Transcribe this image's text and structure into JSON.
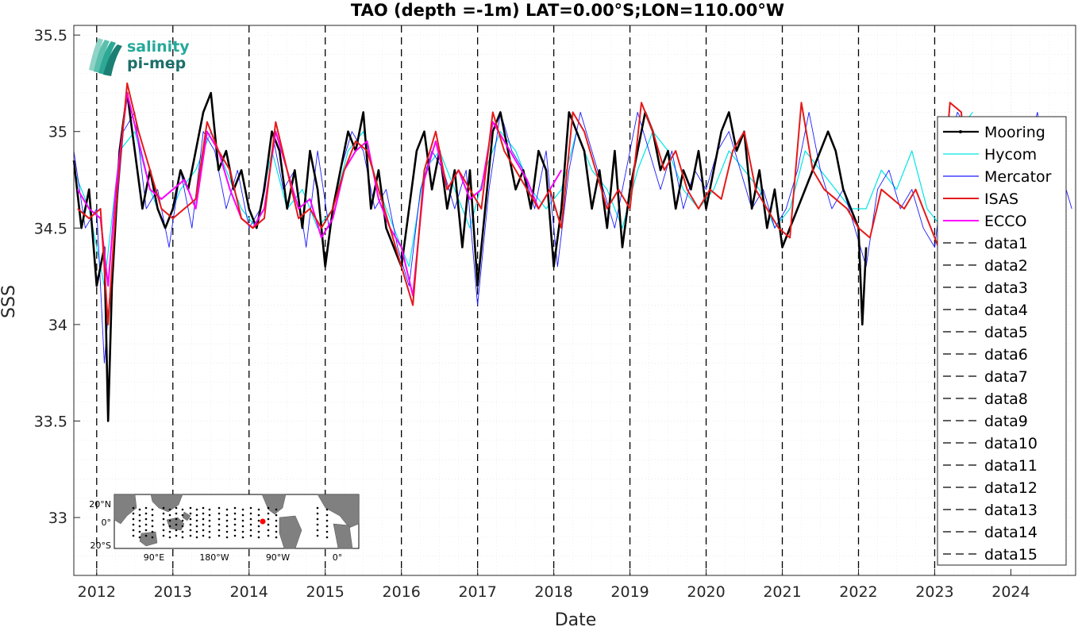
{
  "logo": {
    "line1": "salinity",
    "line2": "pi-mep"
  },
  "inset_map": {
    "lat_labels": [
      "20°N",
      "0°",
      "20°S"
    ],
    "lon_labels": [
      "90°E",
      "180°W",
      "90°W",
      "0°"
    ],
    "marker_color": "#ff0000"
  },
  "chart_data": {
    "type": "line",
    "title": "TAO (depth =-1m) LAT=0.00°S;LON=110.00°W",
    "xlabel": "Date",
    "ylabel": "SSS",
    "xlim": [
      2011.7,
      2024.85
    ],
    "ylim": [
      32.7,
      35.55
    ],
    "x_ticks": [
      2012,
      2013,
      2014,
      2015,
      2016,
      2017,
      2018,
      2019,
      2020,
      2021,
      2022,
      2023,
      2024
    ],
    "y_ticks": [
      33,
      33.5,
      34,
      34.5,
      35,
      35.5
    ],
    "y_tick_labels": [
      "33",
      "33.5",
      "34",
      "34.5",
      "35",
      "35.5"
    ],
    "grid": true,
    "legend_position": "right",
    "vlines_x": [
      2012,
      2013,
      2014,
      2015,
      2016,
      2017,
      2018,
      2019,
      2020,
      2021,
      2022,
      2023
    ],
    "series": [
      {
        "name": "Mooring",
        "color": "#000000",
        "x": [
          2011.7,
          2011.8,
          2011.9,
          2012.0,
          2012.1,
          2012.15,
          2012.2,
          2012.3,
          2012.4,
          2012.5,
          2012.6,
          2012.7,
          2012.8,
          2012.9,
          2013.0,
          2013.1,
          2013.2,
          2013.3,
          2013.4,
          2013.5,
          2013.6,
          2013.7,
          2013.8,
          2013.9,
          2014.0,
          2014.1,
          2014.2,
          2014.3,
          2014.4,
          2014.5,
          2014.6,
          2014.7,
          2014.8,
          2014.9,
          2015.0,
          2015.1,
          2015.2,
          2015.3,
          2015.4,
          2015.5,
          2015.6,
          2015.7,
          2015.8,
          2015.9,
          2016.0,
          2016.1,
          2016.2,
          2016.3,
          2016.4,
          2016.5,
          2016.6,
          2016.7,
          2016.8,
          2016.9,
          2017.0,
          2017.1,
          2017.2,
          2017.3,
          2017.4,
          2017.5,
          2017.6,
          2017.7,
          2017.8,
          2017.9,
          2018.0,
          2018.1,
          2018.2,
          2018.3,
          2018.4,
          2018.5,
          2018.6,
          2018.7,
          2018.8,
          2018.9,
          2019.0,
          2019.1,
          2019.2,
          2019.3,
          2019.4,
          2019.5,
          2019.6,
          2019.7,
          2019.8,
          2019.9,
          2020.0,
          2020.1,
          2020.2,
          2020.3,
          2020.4,
          2020.5,
          2020.6,
          2020.7,
          2020.8,
          2020.9,
          2021.0,
          2021.6,
          2021.7,
          2021.8,
          2021.9,
          2022.0,
          2022.05,
          2022.1
        ],
        "y": [
          34.85,
          34.5,
          34.7,
          34.2,
          34.4,
          33.5,
          34.2,
          34.9,
          35.2,
          34.9,
          34.6,
          34.8,
          34.6,
          34.5,
          34.6,
          34.8,
          34.7,
          34.9,
          35.1,
          35.2,
          34.8,
          34.9,
          34.7,
          34.8,
          34.6,
          34.5,
          34.7,
          35.0,
          34.9,
          34.6,
          34.8,
          34.5,
          34.9,
          34.7,
          34.3,
          34.6,
          34.8,
          35.0,
          34.9,
          35.1,
          34.6,
          34.8,
          34.5,
          34.4,
          34.3,
          34.6,
          34.9,
          35.0,
          34.7,
          34.9,
          34.6,
          34.8,
          34.4,
          34.8,
          34.2,
          34.6,
          35.0,
          35.1,
          34.9,
          34.7,
          34.8,
          34.6,
          34.9,
          34.8,
          34.3,
          34.6,
          35.1,
          35.0,
          34.9,
          34.6,
          34.8,
          34.5,
          34.9,
          34.4,
          34.7,
          34.9,
          35.1,
          35.0,
          34.8,
          34.9,
          34.6,
          34.8,
          34.7,
          34.9,
          34.6,
          34.8,
          35.0,
          35.1,
          34.9,
          35.0,
          34.6,
          34.8,
          34.5,
          34.7,
          34.4,
          35.0,
          34.9,
          34.7,
          34.6,
          34.5,
          34.0,
          34.4
        ]
      },
      {
        "name": "Hycom",
        "color": "#00e5e5",
        "x": [
          2011.7,
          2011.9,
          2012.1,
          2012.3,
          2012.5,
          2012.7,
          2012.9,
          2013.1,
          2013.3,
          2013.5,
          2013.7,
          2013.9,
          2014.1,
          2014.3,
          2014.5,
          2014.7,
          2014.9,
          2015.1,
          2015.3,
          2015.5,
          2015.7,
          2015.9,
          2016.1,
          2016.3,
          2016.5,
          2016.7,
          2016.9,
          2017.1,
          2017.3,
          2017.5,
          2017.7,
          2017.9,
          2018.1,
          2018.3,
          2018.5,
          2018.7,
          2018.9,
          2019.1,
          2019.3,
          2019.5,
          2019.7,
          2019.9,
          2020.1,
          2020.3,
          2020.5,
          2020.7,
          2020.9,
          2021.1,
          2021.3,
          2021.5,
          2021.7,
          2021.9,
          2022.1,
          2022.3,
          2022.5,
          2022.7,
          2022.9,
          2023.1,
          2023.3,
          2023.5
        ],
        "y": [
          34.8,
          34.6,
          34.2,
          34.9,
          35.0,
          34.7,
          34.5,
          34.7,
          34.8,
          35.0,
          34.8,
          34.6,
          34.5,
          34.9,
          34.6,
          34.7,
          34.5,
          34.6,
          34.9,
          35.0,
          34.7,
          34.5,
          34.3,
          34.8,
          34.9,
          34.7,
          34.5,
          34.8,
          35.0,
          34.9,
          34.7,
          34.6,
          34.7,
          35.0,
          34.8,
          34.7,
          34.5,
          34.8,
          35.0,
          34.9,
          34.7,
          34.6,
          34.7,
          34.9,
          34.8,
          34.7,
          34.5,
          34.6,
          34.9,
          34.8,
          34.7,
          34.6,
          34.6,
          34.8,
          34.7,
          34.9,
          34.6,
          34.5,
          35.0,
          35.1
        ]
      },
      {
        "name": "Mercator",
        "color": "#1a1aff",
        "x": [
          2011.7,
          2011.85,
          2012.0,
          2012.1,
          2012.2,
          2012.35,
          2012.5,
          2012.65,
          2012.8,
          2012.95,
          2013.1,
          2013.25,
          2013.4,
          2013.55,
          2013.7,
          2013.85,
          2014.0,
          2014.15,
          2014.3,
          2014.45,
          2014.6,
          2014.75,
          2014.9,
          2015.05,
          2015.2,
          2015.35,
          2015.5,
          2015.65,
          2015.8,
          2015.95,
          2016.1,
          2016.25,
          2016.4,
          2016.55,
          2016.7,
          2016.85,
          2017.0,
          2017.15,
          2017.3,
          2017.45,
          2017.6,
          2017.75,
          2017.9,
          2018.05,
          2018.2,
          2018.35,
          2018.5,
          2018.65,
          2018.8,
          2018.95,
          2019.1,
          2019.25,
          2019.4,
          2019.55,
          2019.7,
          2019.85,
          2020.0,
          2020.15,
          2020.3,
          2020.45,
          2020.6,
          2020.75,
          2020.9,
          2021.05,
          2021.2,
          2021.35,
          2021.5,
          2021.65,
          2021.8,
          2021.95,
          2022.1,
          2022.25,
          2022.4,
          2022.55,
          2022.7,
          2022.85,
          2023.0,
          2023.15,
          2023.3,
          2023.45,
          2023.6,
          2023.75,
          2023.9,
          2024.05,
          2024.2,
          2024.35,
          2024.5,
          2024.65,
          2024.8
        ],
        "y": [
          34.9,
          34.5,
          34.6,
          33.8,
          34.3,
          35.0,
          35.1,
          34.6,
          34.7,
          34.4,
          34.8,
          34.5,
          35.0,
          34.9,
          34.6,
          34.8,
          34.5,
          34.6,
          35.0,
          34.7,
          34.8,
          34.4,
          34.9,
          34.5,
          34.8,
          35.0,
          34.9,
          34.6,
          34.7,
          34.4,
          34.2,
          34.7,
          34.9,
          34.8,
          34.6,
          34.8,
          34.1,
          34.7,
          35.1,
          34.9,
          34.8,
          34.6,
          34.9,
          34.3,
          34.8,
          35.1,
          34.9,
          34.7,
          34.5,
          34.8,
          35.1,
          34.9,
          34.7,
          34.9,
          34.6,
          34.8,
          34.7,
          34.9,
          35.0,
          34.8,
          34.6,
          34.7,
          34.5,
          34.6,
          34.8,
          35.1,
          34.8,
          34.6,
          34.7,
          34.5,
          34.3,
          34.7,
          34.8,
          34.6,
          34.7,
          34.5,
          34.4,
          34.9,
          35.1,
          35.0,
          34.6,
          34.8,
          34.5,
          34.7,
          34.9,
          35.1,
          34.7,
          34.8,
          34.6
        ]
      },
      {
        "name": "ISAS",
        "color": "#e51a1a",
        "x": [
          2011.75,
          2011.9,
          2012.05,
          2012.15,
          2012.25,
          2012.4,
          2012.55,
          2012.7,
          2012.85,
          2013.0,
          2013.15,
          2013.3,
          2013.45,
          2013.6,
          2013.75,
          2013.9,
          2014.05,
          2014.2,
          2014.35,
          2014.5,
          2014.65,
          2014.8,
          2014.95,
          2015.1,
          2015.25,
          2015.4,
          2015.55,
          2015.7,
          2015.85,
          2016.0,
          2016.15,
          2016.3,
          2016.45,
          2016.6,
          2016.75,
          2016.9,
          2017.05,
          2017.2,
          2017.35,
          2017.5,
          2017.65,
          2017.8,
          2017.95,
          2018.1,
          2018.25,
          2018.4,
          2018.55,
          2018.7,
          2018.85,
          2019.0,
          2019.15,
          2019.3,
          2019.45,
          2019.6,
          2019.75,
          2019.9,
          2020.05,
          2020.2,
          2020.35,
          2020.5,
          2020.65,
          2020.8,
          2020.95,
          2021.1,
          2021.25,
          2021.4,
          2021.55,
          2021.7,
          2021.85,
          2022.0,
          2022.15,
          2022.3,
          2022.45,
          2022.6,
          2022.75,
          2022.9,
          2023.05,
          2023.2,
          2023.35,
          2023.5
        ],
        "y": [
          34.6,
          34.55,
          34.6,
          34.0,
          34.6,
          35.25,
          35.0,
          34.8,
          34.6,
          34.55,
          34.6,
          34.65,
          35.05,
          34.9,
          34.8,
          34.55,
          34.5,
          34.55,
          35.05,
          34.8,
          34.55,
          34.6,
          34.5,
          34.6,
          34.8,
          34.95,
          34.9,
          34.7,
          34.5,
          34.3,
          34.1,
          34.8,
          35.0,
          34.7,
          34.8,
          34.7,
          34.6,
          35.1,
          34.9,
          34.8,
          34.7,
          34.6,
          34.7,
          34.5,
          35.1,
          35.0,
          34.8,
          34.6,
          34.7,
          34.6,
          35.15,
          35.0,
          34.8,
          34.9,
          34.7,
          34.6,
          34.7,
          34.65,
          34.9,
          35.0,
          34.7,
          34.6,
          34.5,
          34.45,
          35.15,
          34.8,
          34.7,
          34.65,
          34.6,
          34.5,
          34.45,
          34.7,
          34.65,
          34.6,
          34.7,
          34.55,
          34.4,
          35.15,
          35.1,
          34.3
        ]
      },
      {
        "name": "ECCO",
        "color": "#ff00ff",
        "x": [
          2011.75,
          2011.9,
          2012.05,
          2012.15,
          2012.25,
          2012.4,
          2012.55,
          2012.7,
          2012.85,
          2013.0,
          2013.15,
          2013.3,
          2013.45,
          2013.6,
          2013.75,
          2013.9,
          2014.05,
          2014.2,
          2014.35,
          2014.5,
          2014.65,
          2014.8,
          2014.95,
          2015.1,
          2015.25,
          2015.4,
          2015.55,
          2015.7,
          2015.85,
          2016.0,
          2016.15,
          2016.3,
          2016.45,
          2016.6,
          2016.75,
          2016.9,
          2017.05,
          2017.2,
          2017.35,
          2017.5,
          2017.65,
          2017.8,
          2017.95,
          2018.1
        ],
        "y": [
          34.7,
          34.6,
          34.55,
          34.2,
          34.7,
          35.2,
          34.95,
          34.7,
          34.65,
          34.7,
          34.75,
          34.6,
          35.0,
          34.9,
          34.7,
          34.55,
          34.5,
          34.6,
          35.0,
          34.8,
          34.6,
          34.65,
          34.45,
          34.55,
          34.8,
          34.9,
          34.95,
          34.65,
          34.5,
          34.4,
          34.15,
          34.75,
          34.95,
          34.7,
          34.8,
          34.65,
          34.7,
          35.05,
          34.95,
          34.85,
          34.75,
          34.6,
          34.7,
          34.8
        ]
      },
      {
        "name": "data1",
        "color": "#000000"
      },
      {
        "name": "data2",
        "color": "#000000"
      },
      {
        "name": "data3",
        "color": "#000000"
      },
      {
        "name": "data4",
        "color": "#000000"
      },
      {
        "name": "data5",
        "color": "#000000"
      },
      {
        "name": "data6",
        "color": "#000000"
      },
      {
        "name": "data7",
        "color": "#000000"
      },
      {
        "name": "data8",
        "color": "#000000"
      },
      {
        "name": "data9",
        "color": "#000000"
      },
      {
        "name": "data10",
        "color": "#000000"
      },
      {
        "name": "data11",
        "color": "#000000"
      },
      {
        "name": "data12",
        "color": "#000000"
      },
      {
        "name": "data13",
        "color": "#000000"
      },
      {
        "name": "data14",
        "color": "#000000"
      },
      {
        "name": "data15",
        "color": "#000000"
      }
    ]
  }
}
